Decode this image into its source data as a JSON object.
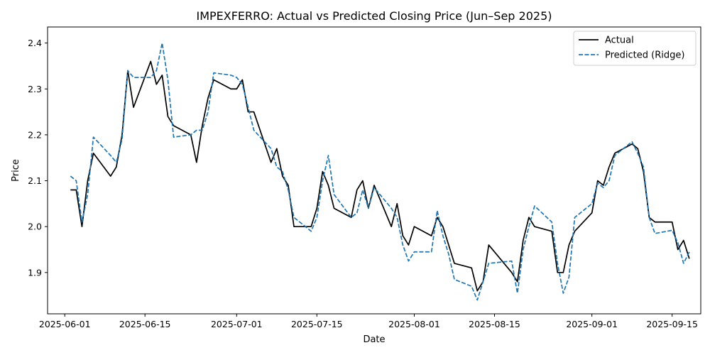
{
  "chart_data": {
    "type": "line",
    "title": "IMPEXFERRO: Actual vs Predicted Closing Price (Jun–Sep 2025)",
    "xlabel": "Date",
    "ylabel": "Price",
    "x_range": [
      "2025-05-29",
      "2025-09-20"
    ],
    "ylim": [
      1.81,
      2.435
    ],
    "x_ticks": [
      "2025-06-01",
      "2025-06-15",
      "2025-07-01",
      "2025-07-15",
      "2025-08-01",
      "2025-08-15",
      "2025-09-01",
      "2025-09-15"
    ],
    "y_ticks": [
      1.9,
      2.0,
      2.1,
      2.2,
      2.3,
      2.4
    ],
    "y_tick_labels": [
      "1.9",
      "2.0",
      "2.1",
      "2.2",
      "2.3",
      "2.4"
    ],
    "grid": false,
    "legend_position": "top-right",
    "series": [
      {
        "name": "Actual",
        "style": "solid",
        "color": "#000000",
        "points": [
          [
            "2025-06-02",
            2.08
          ],
          [
            "2025-06-03",
            2.08
          ],
          [
            "2025-06-04",
            2.0
          ],
          [
            "2025-06-05",
            2.1
          ],
          [
            "2025-06-06",
            2.16
          ],
          [
            "2025-06-09",
            2.11
          ],
          [
            "2025-06-10",
            2.13
          ],
          [
            "2025-06-11",
            2.2
          ],
          [
            "2025-06-12",
            2.34
          ],
          [
            "2025-06-13",
            2.26
          ],
          [
            "2025-06-16",
            2.36
          ],
          [
            "2025-06-17",
            2.31
          ],
          [
            "2025-06-18",
            2.33
          ],
          [
            "2025-06-19",
            2.24
          ],
          [
            "2025-06-20",
            2.22
          ],
          [
            "2025-06-23",
            2.2
          ],
          [
            "2025-06-24",
            2.14
          ],
          [
            "2025-06-25",
            2.22
          ],
          [
            "2025-06-26",
            2.28
          ],
          [
            "2025-06-27",
            2.32
          ],
          [
            "2025-06-30",
            2.3
          ],
          [
            "2025-07-01",
            2.3
          ],
          [
            "2025-07-02",
            2.32
          ],
          [
            "2025-07-03",
            2.25
          ],
          [
            "2025-07-04",
            2.25
          ],
          [
            "2025-07-07",
            2.14
          ],
          [
            "2025-07-08",
            2.17
          ],
          [
            "2025-07-09",
            2.11
          ],
          [
            "2025-07-10",
            2.09
          ],
          [
            "2025-07-11",
            2.0
          ],
          [
            "2025-07-14",
            2.0
          ],
          [
            "2025-07-15",
            2.04
          ],
          [
            "2025-07-16",
            2.12
          ],
          [
            "2025-07-17",
            2.09
          ],
          [
            "2025-07-18",
            2.04
          ],
          [
            "2025-07-21",
            2.02
          ],
          [
            "2025-07-22",
            2.08
          ],
          [
            "2025-07-23",
            2.1
          ],
          [
            "2025-07-24",
            2.04
          ],
          [
            "2025-07-25",
            2.09
          ],
          [
            "2025-07-28",
            2.0
          ],
          [
            "2025-07-29",
            2.05
          ],
          [
            "2025-07-30",
            1.98
          ],
          [
            "2025-07-31",
            1.96
          ],
          [
            "2025-08-01",
            2.0
          ],
          [
            "2025-08-04",
            1.98
          ],
          [
            "2025-08-05",
            2.02
          ],
          [
            "2025-08-06",
            2.0
          ],
          [
            "2025-08-07",
            1.96
          ],
          [
            "2025-08-08",
            1.92
          ],
          [
            "2025-08-11",
            1.91
          ],
          [
            "2025-08-12",
            1.86
          ],
          [
            "2025-08-13",
            1.88
          ],
          [
            "2025-08-14",
            1.96
          ],
          [
            "2025-08-18",
            1.9
          ],
          [
            "2025-08-19",
            1.88
          ],
          [
            "2025-08-20",
            1.97
          ],
          [
            "2025-08-21",
            2.02
          ],
          [
            "2025-08-22",
            2.0
          ],
          [
            "2025-08-25",
            1.99
          ],
          [
            "2025-08-26",
            1.9
          ],
          [
            "2025-08-27",
            1.9
          ],
          [
            "2025-08-28",
            1.96
          ],
          [
            "2025-08-29",
            1.99
          ],
          [
            "2025-09-01",
            2.03
          ],
          [
            "2025-09-02",
            2.1
          ],
          [
            "2025-09-03",
            2.09
          ],
          [
            "2025-09-04",
            2.13
          ],
          [
            "2025-09-05",
            2.16
          ],
          [
            "2025-09-08",
            2.18
          ],
          [
            "2025-09-09",
            2.17
          ],
          [
            "2025-09-10",
            2.12
          ],
          [
            "2025-09-11",
            2.02
          ],
          [
            "2025-09-12",
            2.01
          ],
          [
            "2025-09-15",
            2.01
          ],
          [
            "2025-09-16",
            1.95
          ],
          [
            "2025-09-17",
            1.97
          ],
          [
            "2025-09-18",
            1.93
          ]
        ]
      },
      {
        "name": "Predicted (Ridge)",
        "style": "dashed",
        "color": "#1f77b4",
        "points": [
          [
            "2025-06-02",
            2.11
          ],
          [
            "2025-06-03",
            2.1
          ],
          [
            "2025-06-04",
            2.01
          ],
          [
            "2025-06-05",
            2.07
          ],
          [
            "2025-06-06",
            2.195
          ],
          [
            "2025-06-09",
            2.155
          ],
          [
            "2025-06-10",
            2.14
          ],
          [
            "2025-06-11",
            2.19
          ],
          [
            "2025-06-12",
            2.34
          ],
          [
            "2025-06-13",
            2.325
          ],
          [
            "2025-06-16",
            2.325
          ],
          [
            "2025-06-17",
            2.34
          ],
          [
            "2025-06-18",
            2.4
          ],
          [
            "2025-06-19",
            2.32
          ],
          [
            "2025-06-20",
            2.195
          ],
          [
            "2025-06-23",
            2.2
          ],
          [
            "2025-06-24",
            2.21
          ],
          [
            "2025-06-25",
            2.21
          ],
          [
            "2025-06-26",
            2.25
          ],
          [
            "2025-06-27",
            2.335
          ],
          [
            "2025-06-30",
            2.33
          ],
          [
            "2025-07-01",
            2.325
          ],
          [
            "2025-07-02",
            2.31
          ],
          [
            "2025-07-03",
            2.26
          ],
          [
            "2025-07-04",
            2.21
          ],
          [
            "2025-07-07",
            2.17
          ],
          [
            "2025-07-08",
            2.13
          ],
          [
            "2025-07-09",
            2.12
          ],
          [
            "2025-07-10",
            2.08
          ],
          [
            "2025-07-11",
            2.02
          ],
          [
            "2025-07-14",
            1.99
          ],
          [
            "2025-07-15",
            2.02
          ],
          [
            "2025-07-16",
            2.1
          ],
          [
            "2025-07-17",
            2.155
          ],
          [
            "2025-07-18",
            2.07
          ],
          [
            "2025-07-21",
            2.02
          ],
          [
            "2025-07-22",
            2.03
          ],
          [
            "2025-07-23",
            2.08
          ],
          [
            "2025-07-24",
            2.04
          ],
          [
            "2025-07-25",
            2.085
          ],
          [
            "2025-07-28",
            2.04
          ],
          [
            "2025-07-29",
            2.02
          ],
          [
            "2025-07-30",
            1.96
          ],
          [
            "2025-07-31",
            1.925
          ],
          [
            "2025-08-01",
            1.945
          ],
          [
            "2025-08-04",
            1.945
          ],
          [
            "2025-08-05",
            2.035
          ],
          [
            "2025-08-06",
            1.98
          ],
          [
            "2025-08-07",
            1.94
          ],
          [
            "2025-08-08",
            1.885
          ],
          [
            "2025-08-11",
            1.87
          ],
          [
            "2025-08-12",
            1.84
          ],
          [
            "2025-08-13",
            1.88
          ],
          [
            "2025-08-14",
            1.92
          ],
          [
            "2025-08-18",
            1.925
          ],
          [
            "2025-08-19",
            1.855
          ],
          [
            "2025-08-20",
            1.95
          ],
          [
            "2025-08-21",
            2.0
          ],
          [
            "2025-08-22",
            2.045
          ],
          [
            "2025-08-25",
            2.01
          ],
          [
            "2025-08-26",
            1.92
          ],
          [
            "2025-08-27",
            1.855
          ],
          [
            "2025-08-28",
            1.89
          ],
          [
            "2025-08-29",
            2.02
          ],
          [
            "2025-09-01",
            2.05
          ],
          [
            "2025-09-02",
            2.095
          ],
          [
            "2025-09-03",
            2.085
          ],
          [
            "2025-09-04",
            2.1
          ],
          [
            "2025-09-05",
            2.155
          ],
          [
            "2025-09-08",
            2.185
          ],
          [
            "2025-09-09",
            2.16
          ],
          [
            "2025-09-10",
            2.13
          ],
          [
            "2025-09-11",
            2.02
          ],
          [
            "2025-09-12",
            1.985
          ],
          [
            "2025-09-15",
            1.992
          ],
          [
            "2025-09-16",
            1.965
          ],
          [
            "2025-09-17",
            1.92
          ],
          [
            "2025-09-18",
            1.945
          ]
        ]
      }
    ]
  }
}
